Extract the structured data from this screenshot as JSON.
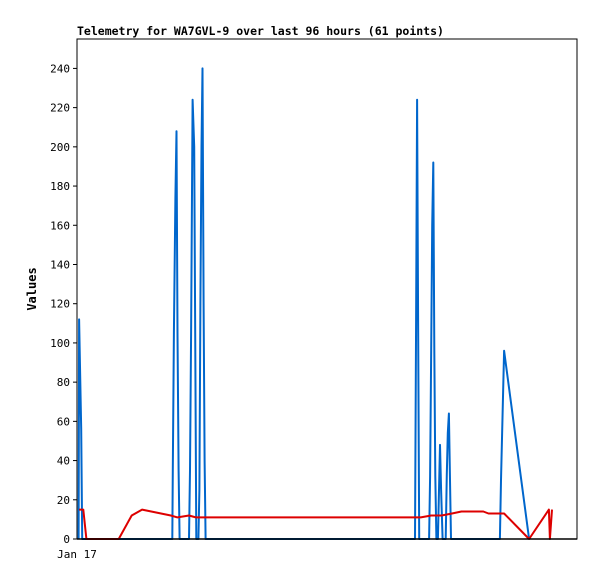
{
  "chart_data": {
    "type": "line",
    "title": "Telemetry for WA7GVL-9 over last 96 hours (61 points)",
    "xlabel": "",
    "ylabel": "Values",
    "x_tick_labels": [
      "Jan 17"
    ],
    "xlim": [
      0,
      96
    ],
    "ylim": [
      0,
      255
    ],
    "y_ticks": [
      0,
      20,
      40,
      60,
      80,
      100,
      120,
      140,
      160,
      180,
      200,
      220,
      240
    ],
    "grid": false,
    "legend": "none",
    "series": [
      {
        "color": "#0066cc",
        "points": [
          [
            0.3,
            0
          ],
          [
            0.4,
            112
          ],
          [
            0.8,
            56
          ],
          [
            1.0,
            0
          ],
          [
            18.3,
            0
          ],
          [
            18.4,
            35
          ],
          [
            18.6,
            105
          ],
          [
            18.9,
            174
          ],
          [
            19.1,
            208
          ],
          [
            19.3,
            105
          ],
          [
            19.5,
            35
          ],
          [
            19.7,
            0
          ],
          [
            21.5,
            0
          ],
          [
            21.7,
            35
          ],
          [
            21.9,
            105
          ],
          [
            22.2,
            224
          ],
          [
            22.5,
            200
          ],
          [
            22.7,
            105
          ],
          [
            22.9,
            0
          ],
          [
            23.3,
            0
          ],
          [
            23.5,
            25
          ],
          [
            23.7,
            120
          ],
          [
            23.9,
            200
          ],
          [
            24.1,
            240
          ],
          [
            24.3,
            120
          ],
          [
            24.5,
            40
          ],
          [
            24.7,
            0
          ],
          [
            64.9,
            0
          ],
          [
            65.1,
            112
          ],
          [
            65.3,
            224
          ],
          [
            65.5,
            112
          ],
          [
            65.7,
            0
          ],
          [
            67.6,
            0
          ],
          [
            67.8,
            32
          ],
          [
            68.0,
            97
          ],
          [
            68.2,
            160
          ],
          [
            68.4,
            192
          ],
          [
            68.6,
            97
          ],
          [
            68.8,
            32
          ],
          [
            69.0,
            0
          ],
          [
            69.3,
            0
          ],
          [
            69.5,
            25
          ],
          [
            69.7,
            48
          ],
          [
            69.9,
            25
          ],
          [
            70.2,
            0
          ],
          [
            70.8,
            0
          ],
          [
            71.0,
            33
          ],
          [
            71.2,
            54
          ],
          [
            71.4,
            64
          ],
          [
            71.6,
            33
          ],
          [
            71.8,
            0
          ],
          [
            81.2,
            0
          ],
          [
            81.4,
            30
          ],
          [
            82.0,
            96
          ],
          [
            86.8,
            0
          ]
        ]
      },
      {
        "color": "#dd0000",
        "points": [
          [
            0.4,
            15
          ],
          [
            1.2,
            15
          ],
          [
            1.8,
            0
          ],
          [
            8.0,
            0
          ],
          [
            10.5,
            12
          ],
          [
            12.5,
            15
          ],
          [
            18.0,
            12
          ],
          [
            19.3,
            11
          ],
          [
            21.5,
            12
          ],
          [
            22.8,
            11
          ],
          [
            48,
            11
          ],
          [
            66.0,
            11
          ],
          [
            68.0,
            12
          ],
          [
            70.0,
            12
          ],
          [
            72.0,
            13
          ],
          [
            73.8,
            14
          ],
          [
            78.0,
            14
          ],
          [
            79.0,
            13
          ],
          [
            82.0,
            13
          ],
          [
            86.8,
            0
          ],
          [
            90.6,
            15
          ],
          [
            90.8,
            0
          ],
          [
            91.2,
            15
          ]
        ]
      },
      {
        "color": "#000000",
        "points": [
          [
            0,
            0
          ],
          [
            96,
            0
          ]
        ]
      }
    ]
  }
}
